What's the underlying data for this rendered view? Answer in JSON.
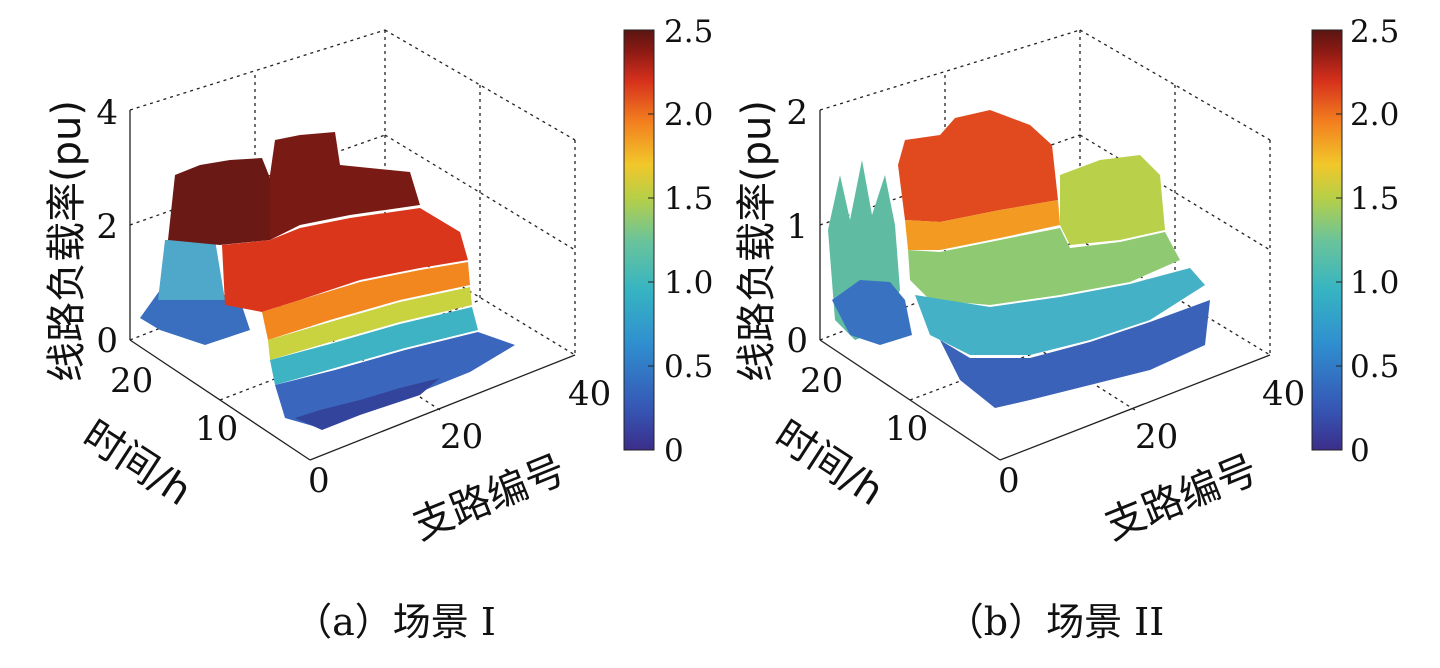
{
  "colormap": [
    "#3b2e8a",
    "#3657b5",
    "#2f8ecf",
    "#36b4c2",
    "#6bc49a",
    "#b7cf47",
    "#f1c72a",
    "#f3801f",
    "#d6301c",
    "#8c1a14",
    "#5a1512"
  ],
  "chart_data": [
    {
      "type": "surface",
      "caption": "（a）场景 I",
      "zlabel": "线路负载率(pu)",
      "ylabel": "时间/h",
      "xlabel": "支路编号",
      "z_ticks": [
        "0",
        "2",
        "4"
      ],
      "y_ticks": [
        "20",
        "10",
        "0"
      ],
      "x_ticks": [
        "20",
        "40"
      ],
      "zlim": [
        0,
        4
      ],
      "ylim": [
        0,
        24
      ],
      "xlim": [
        0,
        40
      ],
      "colorbar_ticks": [
        "2.5",
        "2.0",
        "1.5",
        "1.0",
        "0.5",
        "0"
      ],
      "colorbar_range": [
        0,
        2.5
      ],
      "description_levels": {
        "high_load_hours": [
          14,
          22
        ],
        "high_load_value": 2.5,
        "mid_load_value": 1.6,
        "night_load_value": 0.4
      }
    },
    {
      "type": "surface",
      "caption": "（b）场景 II",
      "zlabel": "线路负载率(pu)",
      "ylabel": "时间/h",
      "xlabel": "支路编号",
      "z_ticks": [
        "0",
        "1",
        "2"
      ],
      "y_ticks": [
        "20",
        "10",
        "0"
      ],
      "x_ticks": [
        "20",
        "40"
      ],
      "zlim": [
        0,
        2
      ],
      "ylim": [
        0,
        24
      ],
      "xlim": [
        0,
        40
      ],
      "colorbar_ticks": [
        "2.5",
        "2.0",
        "1.5",
        "1.0",
        "0.5",
        "0"
      ],
      "colorbar_range": [
        0,
        2.5
      ],
      "description_levels": {
        "peak_value": 1.9,
        "plateau_value": 1.45,
        "base_value": 0.7
      }
    }
  ]
}
